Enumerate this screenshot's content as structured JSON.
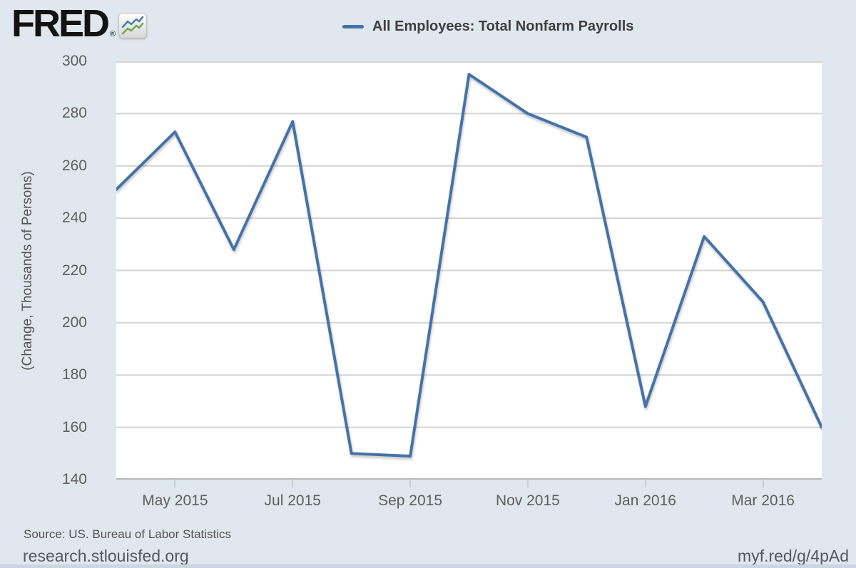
{
  "header": {
    "logo_text": "FRED",
    "registered_mark": "®",
    "legend": {
      "label": "All Employees: Total Nonfarm Payrolls",
      "swatch_color": "#4572a7"
    }
  },
  "chart_data": {
    "type": "line",
    "title": "All Employees: Total Nonfarm Payrolls",
    "x": [
      "Apr 2015",
      "May 2015",
      "Jun 2015",
      "Jul 2015",
      "Aug 2015",
      "Sep 2015",
      "Oct 2015",
      "Nov 2015",
      "Dec 2015",
      "Jan 2016",
      "Feb 2016",
      "Mar 2016",
      "Apr 2016"
    ],
    "values": [
      251,
      273,
      228,
      277,
      150,
      149,
      295,
      280,
      271,
      168,
      233,
      208,
      160
    ],
    "ylabel": "(Change, Thousands of Persons)",
    "xlabel": "",
    "ylim": [
      140,
      300
    ],
    "yticks": [
      140,
      160,
      180,
      200,
      220,
      240,
      260,
      280,
      300
    ],
    "xticks": [
      {
        "label": "May 2015",
        "index": 1
      },
      {
        "label": "Jul 2015",
        "index": 3
      },
      {
        "label": "Sep 2015",
        "index": 5
      },
      {
        "label": "Nov 2015",
        "index": 7
      },
      {
        "label": "Jan 2016",
        "index": 9
      },
      {
        "label": "Mar 2016",
        "index": 11
      }
    ],
    "grid": true,
    "legend_position": "top",
    "line_color": "#4572a7"
  },
  "footer": {
    "source": "Source: US. Bureau of Labor Statistics",
    "site": "research.stlouisfed.org",
    "short_url": "myf.red/g/4pAd"
  },
  "colors": {
    "background": "#e0e7ee",
    "plot_background": "#ffffff",
    "grid_line": "#d4d4d4",
    "axis_line": "#b4b7ba",
    "tick_mark": "#c0d0e0",
    "tick_text": "#5f5f5f",
    "legend_text": "#3f3f3f",
    "footer_text": "#555555",
    "bottom_strip": "#ccd6e1",
    "logo_icon_blue": "#4f81a8",
    "logo_icon_green": "#74a850"
  }
}
